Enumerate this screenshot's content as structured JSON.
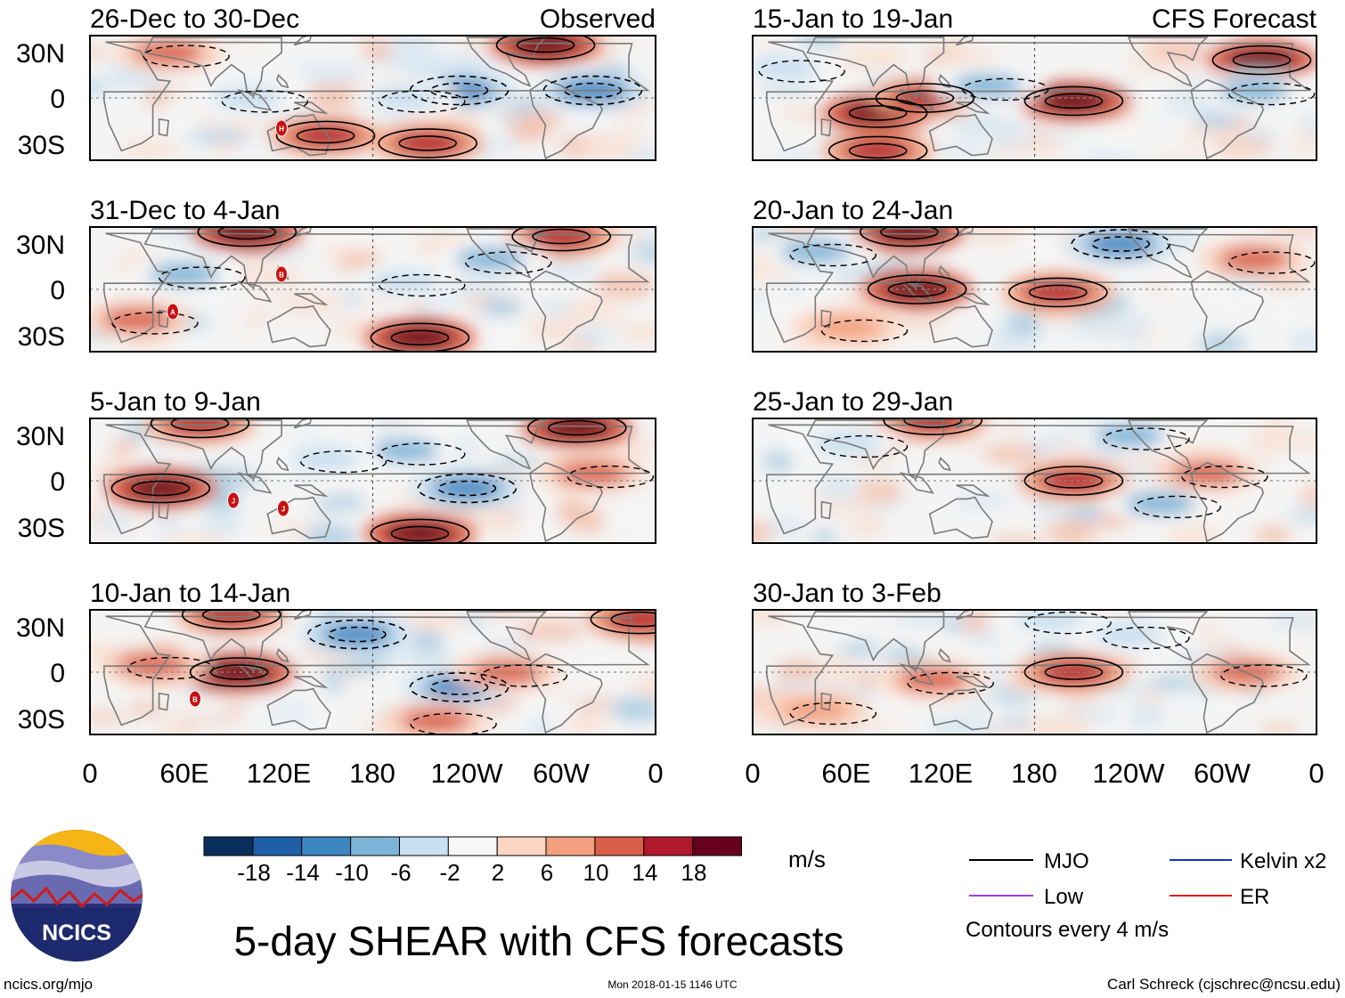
{
  "figure": {
    "title": "5-day SHEAR with CFS forecasts",
    "column_labels": {
      "observed": "Observed",
      "forecast": "CFS Forecast"
    },
    "lat_labels": [
      "30N",
      "0",
      "30S"
    ],
    "lon_labels": [
      "0",
      "60E",
      "120E",
      "180",
      "120W",
      "60W",
      "0"
    ]
  },
  "panels": [
    {
      "title": "26-Dec to 30-Dec",
      "kind": "observed"
    },
    {
      "title": "31-Dec to 4-Jan",
      "kind": "observed"
    },
    {
      "title": "5-Jan to 9-Jan",
      "kind": "observed"
    },
    {
      "title": "10-Jan to 14-Jan",
      "kind": "observed"
    },
    {
      "title": "15-Jan to 19-Jan",
      "kind": "forecast"
    },
    {
      "title": "20-Jan to 24-Jan",
      "kind": "forecast"
    },
    {
      "title": "25-Jan to 29-Jan",
      "kind": "forecast"
    },
    {
      "title": "30-Jan to 3-Feb",
      "kind": "forecast"
    }
  ],
  "colorbar": {
    "unit": "m/s",
    "tick_labels": [
      "-18",
      "-14",
      "-10",
      "-6",
      "-2",
      "2",
      "6",
      "10",
      "14",
      "18"
    ],
    "colors": [
      "#0b2f5c",
      "#1f5fa8",
      "#3d86c1",
      "#7db5d8",
      "#c7dff0",
      "#f7f7f7",
      "#fcd6c2",
      "#f2a07f",
      "#d95f48",
      "#b2182b",
      "#67001f"
    ]
  },
  "legend": {
    "items": [
      {
        "label": "MJO",
        "color": "#000000"
      },
      {
        "label": "Kelvin x2",
        "color": "#1030d0"
      },
      {
        "label": "Low",
        "color": "#9a40e0"
      },
      {
        "label": "ER",
        "color": "#e02020"
      }
    ],
    "note": "Contours every 4 m/s"
  },
  "logo": {
    "text": "NCICS"
  },
  "footer": {
    "left": "ncics.org/mjo",
    "center": "Mon 2018-01-15 1146 UTC",
    "right": "Carl Schreck (cjschrec@ncsu.edu)"
  },
  "storm_markers": [
    {
      "panel": 0,
      "label": "H"
    },
    {
      "panel": 1,
      "label": "B"
    },
    {
      "panel": 1,
      "label": "A"
    },
    {
      "panel": 2,
      "label": "J"
    },
    {
      "panel": 2,
      "label": "J"
    },
    {
      "panel": 3,
      "label": "B"
    }
  ],
  "anomaly_blobs": [
    {
      "panel": 0,
      "lon": 290,
      "lat": 35,
      "value": 18
    },
    {
      "panel": 0,
      "lon": 150,
      "lat": -25,
      "value": 14
    },
    {
      "panel": 0,
      "lon": 215,
      "lat": -30,
      "value": 14
    },
    {
      "panel": 0,
      "lon": 235,
      "lat": 5,
      "value": -14
    },
    {
      "panel": 0,
      "lon": 320,
      "lat": 5,
      "value": -14
    },
    {
      "panel": 0,
      "lon": 200,
      "lat": 0,
      "value": -6
    },
    {
      "panel": 0,
      "lon": 50,
      "lat": 30,
      "value": 10
    },
    {
      "panel": 0,
      "lon": 100,
      "lat": 0,
      "value": -6
    },
    {
      "panel": 1,
      "lon": 100,
      "lat": 38,
      "value": 18
    },
    {
      "panel": 1,
      "lon": 210,
      "lat": -32,
      "value": 18
    },
    {
      "panel": 1,
      "lon": 300,
      "lat": 35,
      "value": 14
    },
    {
      "panel": 1,
      "lon": 60,
      "lat": 10,
      "value": -10
    },
    {
      "panel": 1,
      "lon": 255,
      "lat": 20,
      "value": -10
    },
    {
      "panel": 1,
      "lon": 30,
      "lat": -20,
      "value": 10
    },
    {
      "panel": 1,
      "lon": 200,
      "lat": 5,
      "value": -6
    },
    {
      "panel": 2,
      "lon": 45,
      "lat": -5,
      "value": 18
    },
    {
      "panel": 2,
      "lon": 210,
      "lat": -35,
      "value": 18
    },
    {
      "panel": 2,
      "lon": 70,
      "lat": 38,
      "value": 14
    },
    {
      "panel": 2,
      "lon": 310,
      "lat": 35,
      "value": 18
    },
    {
      "panel": 2,
      "lon": 240,
      "lat": -5,
      "value": -14
    },
    {
      "panel": 2,
      "lon": 200,
      "lat": 20,
      "value": -10
    },
    {
      "panel": 2,
      "lon": 150,
      "lat": 15,
      "value": -6
    },
    {
      "panel": 2,
      "lon": 320,
      "lat": 5,
      "value": 10
    },
    {
      "panel": 3,
      "lon": 95,
      "lat": 0,
      "value": 18
    },
    {
      "panel": 3,
      "lon": 90,
      "lat": 38,
      "value": 14
    },
    {
      "panel": 3,
      "lon": 350,
      "lat": 35,
      "value": 14
    },
    {
      "panel": 3,
      "lon": 235,
      "lat": -10,
      "value": -14
    },
    {
      "panel": 3,
      "lon": 170,
      "lat": 25,
      "value": -14
    },
    {
      "panel": 3,
      "lon": 220,
      "lat": -32,
      "value": 10
    },
    {
      "panel": 3,
      "lon": 265,
      "lat": 0,
      "value": 10
    },
    {
      "panel": 3,
      "lon": 40,
      "lat": 5,
      "value": 10
    },
    {
      "panel": 4,
      "lon": 80,
      "lat": -10,
      "value": 18
    },
    {
      "panel": 4,
      "lon": 205,
      "lat": -2,
      "value": 18
    },
    {
      "panel": 4,
      "lon": 110,
      "lat": 0,
      "value": 14
    },
    {
      "panel": 4,
      "lon": 325,
      "lat": 25,
      "value": 18
    },
    {
      "panel": 4,
      "lon": 80,
      "lat": -35,
      "value": 14
    },
    {
      "panel": 4,
      "lon": 150,
      "lat": 8,
      "value": -10
    },
    {
      "panel": 4,
      "lon": 320,
      "lat": 5,
      "value": -10
    },
    {
      "panel": 4,
      "lon": 20,
      "lat": 20,
      "value": -6
    },
    {
      "panel": 5,
      "lon": 105,
      "lat": 0,
      "value": 18
    },
    {
      "panel": 5,
      "lon": 195,
      "lat": -2,
      "value": 14
    },
    {
      "panel": 5,
      "lon": 100,
      "lat": 38,
      "value": 18
    },
    {
      "panel": 5,
      "lon": 235,
      "lat": 30,
      "value": -14
    },
    {
      "panel": 5,
      "lon": 40,
      "lat": 25,
      "value": -10
    },
    {
      "panel": 5,
      "lon": 320,
      "lat": 20,
      "value": 10
    },
    {
      "panel": 5,
      "lon": 60,
      "lat": -25,
      "value": 6
    },
    {
      "panel": 6,
      "lon": 205,
      "lat": 0,
      "value": 14
    },
    {
      "panel": 6,
      "lon": 115,
      "lat": 40,
      "value": 14
    },
    {
      "panel": 6,
      "lon": 240,
      "lat": 30,
      "value": -10
    },
    {
      "panel": 6,
      "lon": 60,
      "lat": 25,
      "value": -6
    },
    {
      "panel": 6,
      "lon": 260,
      "lat": -15,
      "value": -10
    },
    {
      "panel": 6,
      "lon": 290,
      "lat": 5,
      "value": 10
    },
    {
      "panel": 7,
      "lon": 205,
      "lat": 0,
      "value": 14
    },
    {
      "panel": 7,
      "lon": 115,
      "lat": -5,
      "value": 10
    },
    {
      "panel": 7,
      "lon": 190,
      "lat": 35,
      "value": -6
    },
    {
      "panel": 7,
      "lon": 315,
      "lat": 0,
      "value": 10
    },
    {
      "panel": 7,
      "lon": 240,
      "lat": 25,
      "value": -6
    },
    {
      "panel": 7,
      "lon": 40,
      "lat": -25,
      "value": 6
    }
  ]
}
